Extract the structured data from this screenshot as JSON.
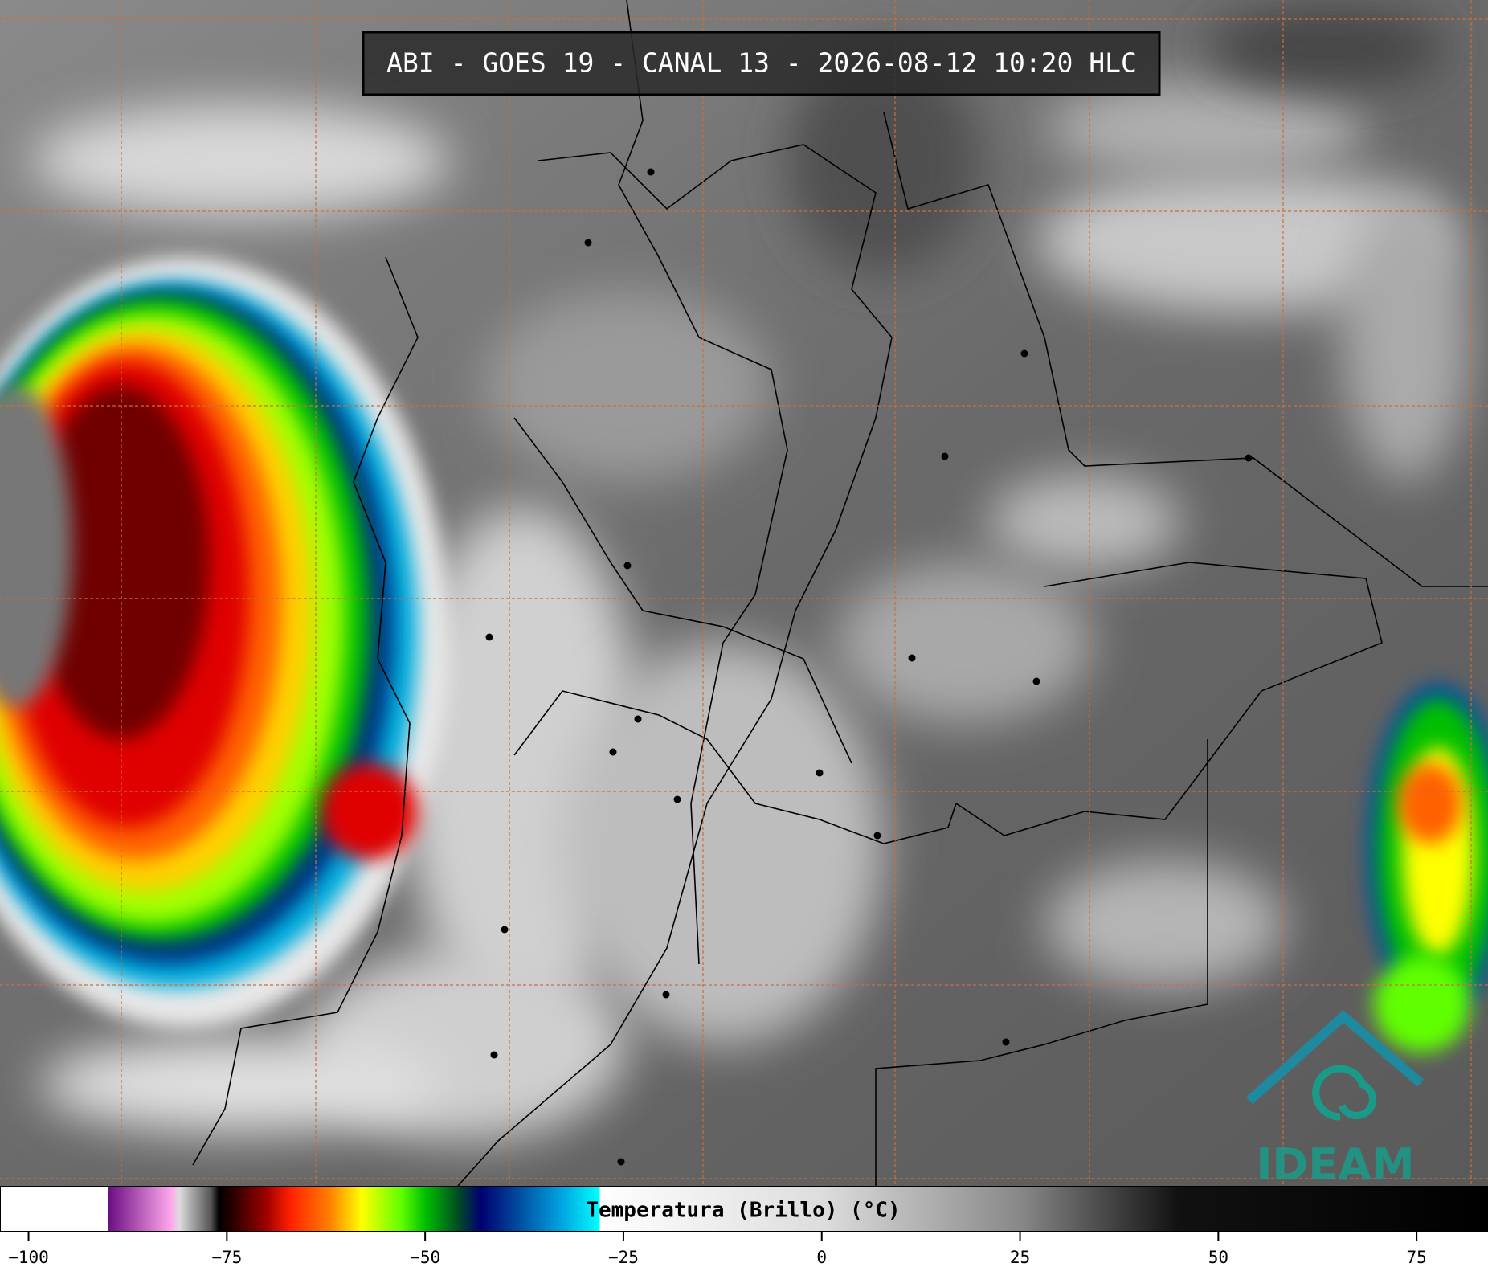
{
  "header": {
    "title": "ABI - GOES 19 - CANAL 13 - 2026-08-12 10:20 HLC"
  },
  "colorbar": {
    "label": "Temperatura (Brillo) (°C)",
    "lim": [
      -103.6,
      84
    ],
    "ticks": [
      {
        "value": -100,
        "label": "−100"
      },
      {
        "value": -75,
        "label": "−75"
      },
      {
        "value": -50,
        "label": "−50"
      },
      {
        "value": -25,
        "label": "−25"
      },
      0,
      25,
      50,
      75
    ],
    "colormap": [
      [
        -103.6,
        "#ffffff"
      ],
      [
        -90,
        "#ffffff"
      ],
      [
        -90,
        "#6a0d83"
      ],
      [
        -82,
        "#ffa8ec"
      ],
      [
        -81,
        "#dddddd"
      ],
      [
        -77,
        "#555555"
      ],
      [
        -76,
        "#000000"
      ],
      [
        -74,
        "#300000"
      ],
      [
        -70,
        "#a00000"
      ],
      [
        -67,
        "#ff2000"
      ],
      [
        -62,
        "#ff8000"
      ],
      [
        -58,
        "#ffff00"
      ],
      [
        -53,
        "#60ff00"
      ],
      [
        -50,
        "#00c000"
      ],
      [
        -46,
        "#005020"
      ],
      [
        -43,
        "#000070"
      ],
      [
        -38,
        "#0050a0"
      ],
      [
        -33,
        "#00a0e0"
      ],
      [
        -28,
        "#00ffff"
      ],
      [
        -28,
        "#ffffff"
      ],
      [
        0,
        "#dddddd"
      ],
      [
        25,
        "#888888"
      ],
      [
        45,
        "#111111"
      ],
      [
        84,
        "#000000"
      ]
    ]
  },
  "logo": {
    "text": "IDEAM"
  }
}
